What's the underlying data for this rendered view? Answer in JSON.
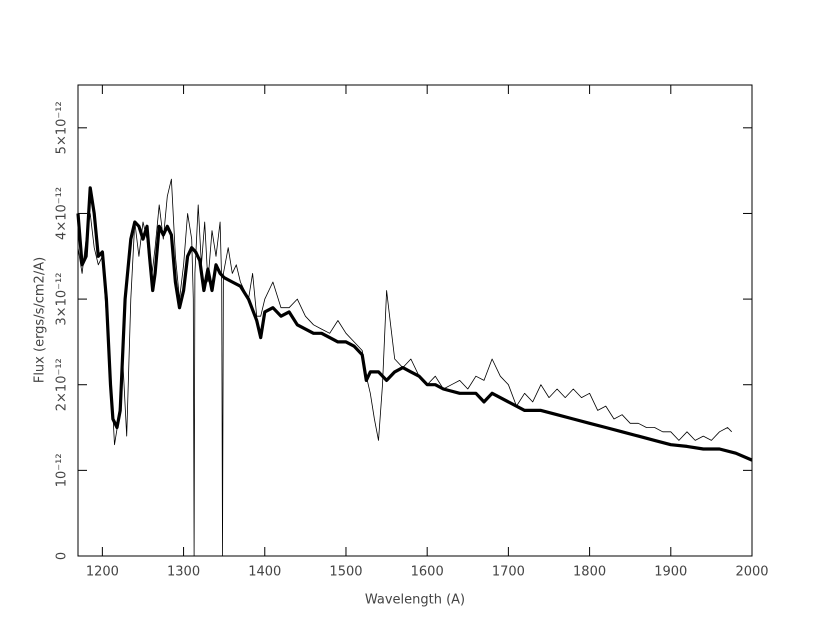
{
  "chart_data": {
    "type": "line",
    "xlabel": "Wavelength (A)",
    "ylabel": "Flux (ergs/s/cm2/A)",
    "xlim": [
      1170,
      2000
    ],
    "ylim": [
      0,
      5.5e-12
    ],
    "xticks": [
      1200,
      1300,
      1400,
      1500,
      1600,
      1700,
      1800,
      1900,
      2000
    ],
    "yticks": [
      0,
      {
        "value": 1e-12,
        "label": "10⁻¹²"
      },
      {
        "value": 2e-12,
        "label": "2×10⁻¹²"
      },
      {
        "value": 3e-12,
        "label": "3×10⁻¹²"
      },
      {
        "value": 4e-12,
        "label": "4×10⁻¹²"
      },
      {
        "value": 5e-12,
        "label": "5×10⁻¹²"
      }
    ],
    "series": [
      {
        "color": "#000000",
        "x": [
          1170,
          1175,
          1180,
          1185,
          1190,
          1195,
          1200,
          1205,
          1210,
          1215,
          1220,
          1225,
          1230,
          1235,
          1240,
          1245,
          1250,
          1255,
          1260,
          1265,
          1270,
          1275,
          1280,
          1285,
          1290,
          1295,
          1300,
          1305,
          1310,
          1312,
          1313,
          1314,
          1318,
          1322,
          1326,
          1330,
          1335,
          1340,
          1345,
          1347,
          1348,
          1349,
          1355,
          1360,
          1365,
          1370,
          1375,
          1380,
          1385,
          1390,
          1395,
          1400,
          1410,
          1420,
          1430,
          1440,
          1450,
          1460,
          1470,
          1480,
          1490,
          1500,
          1510,
          1520,
          1525,
          1530,
          1535,
          1540,
          1545,
          1550,
          1555,
          1560,
          1570,
          1580,
          1590,
          1600,
          1610,
          1620,
          1630,
          1640,
          1650,
          1660,
          1670,
          1680,
          1690,
          1700,
          1710,
          1720,
          1730,
          1740,
          1750,
          1760,
          1770,
          1780,
          1790,
          1800,
          1810,
          1820,
          1830,
          1840,
          1850,
          1860,
          1870,
          1880,
          1890,
          1900,
          1910,
          1920,
          1930,
          1940,
          1950,
          1960,
          1970,
          1975
        ],
        "values": [
          3.6e-12,
          3.3e-12,
          3.7e-12,
          4e-12,
          3.6e-12,
          3.4e-12,
          3.5e-12,
          2.8e-12,
          2.2e-12,
          1.3e-12,
          1.6e-12,
          2.3e-12,
          1.4e-12,
          3e-12,
          3.9e-12,
          3.5e-12,
          3.9e-12,
          3.7e-12,
          3.2e-12,
          3.6e-12,
          4.1e-12,
          3.7e-12,
          4.2e-12,
          4.4e-12,
          3.5e-12,
          3e-12,
          3.4e-12,
          4e-12,
          3.7e-12,
          3e-12,
          0,
          3.3e-12,
          4.1e-12,
          3.4e-12,
          3.9e-12,
          3.2e-12,
          3.8e-12,
          3.5e-12,
          3.9e-12,
          3.2e-12,
          0,
          3.3e-12,
          3.6e-12,
          3.3e-12,
          3.4e-12,
          3.2e-12,
          3.1e-12,
          3e-12,
          3.3e-12,
          2.8e-12,
          2.8e-12,
          3e-12,
          3.2e-12,
          2.9e-12,
          2.9e-12,
          3e-12,
          2.8e-12,
          2.7e-12,
          2.65e-12,
          2.6e-12,
          2.75e-12,
          2.6e-12,
          2.5e-12,
          2.4e-12,
          2.1e-12,
          1.9e-12,
          1.6e-12,
          1.35e-12,
          2e-12,
          3.1e-12,
          2.7e-12,
          2.3e-12,
          2.2e-12,
          2.3e-12,
          2.1e-12,
          2e-12,
          2.1e-12,
          1.95e-12,
          2e-12,
          2.05e-12,
          1.95e-12,
          2.1e-12,
          2.05e-12,
          2.3e-12,
          2.1e-12,
          2e-12,
          1.75e-12,
          1.9e-12,
          1.8e-12,
          2e-12,
          1.85e-12,
          1.95e-12,
          1.85e-12,
          1.95e-12,
          1.85e-12,
          1.9e-12,
          1.7e-12,
          1.75e-12,
          1.6e-12,
          1.65e-12,
          1.55e-12,
          1.55e-12,
          1.5e-12,
          1.5e-12,
          1.45e-12,
          1.45e-12,
          1.35e-12,
          1.45e-12,
          1.35e-12,
          1.4e-12,
          1.35e-12,
          1.45e-12,
          1.5e-12,
          1.45e-12
        ]
      },
      {
        "color": "#000000",
        "x": [
          1170,
          1175,
          1180,
          1185,
          1190,
          1195,
          1200,
          1205,
          1210,
          1213,
          1218,
          1222,
          1228,
          1235,
          1240,
          1245,
          1250,
          1255,
          1258,
          1262,
          1265,
          1270,
          1275,
          1280,
          1285,
          1290,
          1295,
          1300,
          1305,
          1310,
          1315,
          1320,
          1325,
          1330,
          1335,
          1340,
          1345,
          1350,
          1360,
          1370,
          1380,
          1390,
          1395,
          1400,
          1410,
          1420,
          1430,
          1440,
          1450,
          1460,
          1470,
          1480,
          1490,
          1500,
          1510,
          1520,
          1525,
          1530,
          1540,
          1550,
          1560,
          1570,
          1580,
          1590,
          1600,
          1610,
          1620,
          1640,
          1660,
          1670,
          1680,
          1700,
          1720,
          1740,
          1760,
          1780,
          1800,
          1820,
          1840,
          1860,
          1880,
          1900,
          1920,
          1940,
          1960,
          1980,
          2000
        ],
        "values": [
          4e-12,
          3.4e-12,
          3.5e-12,
          4.3e-12,
          4e-12,
          3.5e-12,
          3.55e-12,
          3e-12,
          2e-12,
          1.6e-12,
          1.5e-12,
          1.7e-12,
          3e-12,
          3.7e-12,
          3.9e-12,
          3.85e-12,
          3.7e-12,
          3.85e-12,
          3.5e-12,
          3.1e-12,
          3.3e-12,
          3.85e-12,
          3.75e-12,
          3.85e-12,
          3.75e-12,
          3.2e-12,
          2.9e-12,
          3.1e-12,
          3.5e-12,
          3.6e-12,
          3.55e-12,
          3.45e-12,
          3.1e-12,
          3.35e-12,
          3.1e-12,
          3.4e-12,
          3.3e-12,
          3.25e-12,
          3.2e-12,
          3.15e-12,
          3e-12,
          2.75e-12,
          2.55e-12,
          2.85e-12,
          2.9e-12,
          2.8e-12,
          2.85e-12,
          2.7e-12,
          2.65e-12,
          2.6e-12,
          2.6e-12,
          2.55e-12,
          2.5e-12,
          2.5e-12,
          2.45e-12,
          2.35e-12,
          2.05e-12,
          2.15e-12,
          2.15e-12,
          2.05e-12,
          2.15e-12,
          2.2e-12,
          2.15e-12,
          2.1e-12,
          2e-12,
          2e-12,
          1.95e-12,
          1.9e-12,
          1.9e-12,
          1.8e-12,
          1.9e-12,
          1.8e-12,
          1.7e-12,
          1.7e-12,
          1.65e-12,
          1.6e-12,
          1.55e-12,
          1.5e-12,
          1.45e-12,
          1.4e-12,
          1.35e-12,
          1.3e-12,
          1.28e-12,
          1.25e-12,
          1.25e-12,
          1.2e-12,
          1.12e-12
        ]
      }
    ]
  }
}
